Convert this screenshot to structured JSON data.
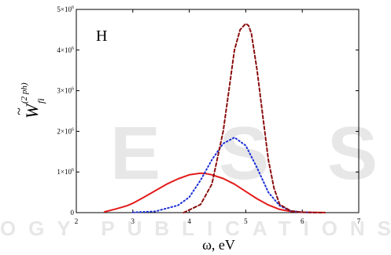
{
  "chart_data": {
    "type": "line",
    "panel_label": "H",
    "xlabel": "ω, eV",
    "ylabel": {
      "symbol": "W",
      "accent": "~",
      "subscript": "fi",
      "superscript": "(2 ph)"
    },
    "xlim": [
      2,
      7
    ],
    "ylim": [
      0,
      5000000
    ],
    "x_ticks": [
      {
        "value": 2,
        "label": "2"
      },
      {
        "value": 3,
        "label": "3"
      },
      {
        "value": 4,
        "label": "4"
      },
      {
        "value": 5,
        "label": "5"
      },
      {
        "value": 6,
        "label": "6"
      },
      {
        "value": 7,
        "label": "7"
      }
    ],
    "y_ticks": [
      {
        "value": 0,
        "mantissa": "0",
        "exp": ""
      },
      {
        "value": 1000000,
        "mantissa": "1×10",
        "exp": "6"
      },
      {
        "value": 2000000,
        "mantissa": "2×10",
        "exp": "6"
      },
      {
        "value": 3000000,
        "mantissa": "3×10",
        "exp": "6"
      },
      {
        "value": 4000000,
        "mantissa": "4×10",
        "exp": "6"
      },
      {
        "value": 5000000,
        "mantissa": "5×10",
        "exp": "6"
      }
    ],
    "grid": false,
    "legend": "none",
    "series": [
      {
        "style": "solid",
        "color": "#e31b1b",
        "x": [
          2.5,
          2.7,
          2.9,
          3.0,
          3.2,
          3.4,
          3.6,
          3.8,
          4.0,
          4.2,
          4.3,
          4.4,
          4.6,
          4.8,
          5.0,
          5.2,
          5.4,
          5.6,
          5.8,
          6.0,
          6.2,
          6.4
        ],
        "y": [
          20000,
          90000,
          170000,
          230000,
          380000,
          540000,
          700000,
          830000,
          930000,
          970000,
          960000,
          930000,
          840000,
          700000,
          520000,
          340000,
          190000,
          80000,
          30000,
          10000,
          3000,
          1000
        ]
      },
      {
        "style": "dotted",
        "color": "#1c2fd6",
        "x": [
          3.0,
          3.4,
          3.8,
          4.0,
          4.2,
          4.4,
          4.6,
          4.8,
          5.0,
          5.2,
          5.4,
          5.6,
          5.8,
          6.0,
          6.2
        ],
        "y": [
          5000,
          30000,
          180000,
          380000,
          800000,
          1300000,
          1700000,
          1850000,
          1650000,
          1100000,
          500000,
          170000,
          40000,
          8000,
          1000
        ]
      },
      {
        "style": "dashed",
        "color": "#8b0e0e",
        "x": [
          3.9,
          4.2,
          4.4,
          4.6,
          4.7,
          4.8,
          4.9,
          5.0,
          5.05,
          5.1,
          5.2,
          5.3,
          5.4,
          5.5,
          5.6,
          5.8,
          6.0,
          6.2,
          6.4
        ],
        "y": [
          0,
          200000,
          700000,
          2000000,
          3000000,
          4000000,
          4500000,
          4650000,
          4600000,
          4400000,
          3500000,
          2400000,
          1300000,
          600000,
          200000,
          40000,
          10000,
          2000,
          0
        ]
      }
    ]
  }
}
